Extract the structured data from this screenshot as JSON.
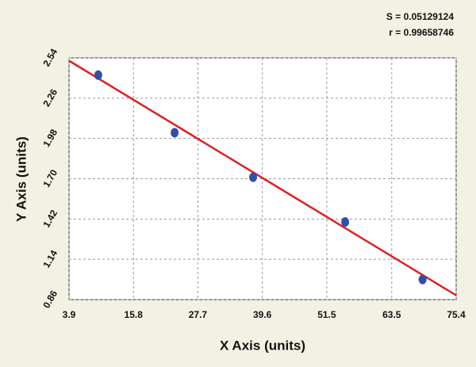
{
  "chart_data": {
    "type": "scatter",
    "annotations": [
      "S = 0.05129124",
      "r = 0.99658746"
    ],
    "xlabel": "X Axis (units)",
    "ylabel": "Y Axis (units)",
    "x": [
      9.3,
      23.4,
      37.9,
      54.9,
      69.2
    ],
    "values": [
      2.42,
      2.02,
      1.71,
      1.4,
      1.0
    ],
    "color": "#2f4fa8",
    "fit": {
      "x": [
        3.9,
        75.4
      ],
      "y": [
        2.52,
        0.89
      ],
      "color": "#e02020"
    },
    "xlim": [
      3.9,
      75.4
    ],
    "xticks": [
      3.9,
      15.8,
      27.7,
      39.6,
      51.5,
      63.5,
      75.4
    ],
    "ylim": [
      0.86,
      2.54
    ],
    "yticks": [
      0.86,
      1.14,
      1.42,
      {
        "value": 1.7,
        "label": "1.70"
      },
      1.98,
      2.26,
      2.54
    ],
    "grid": true
  }
}
